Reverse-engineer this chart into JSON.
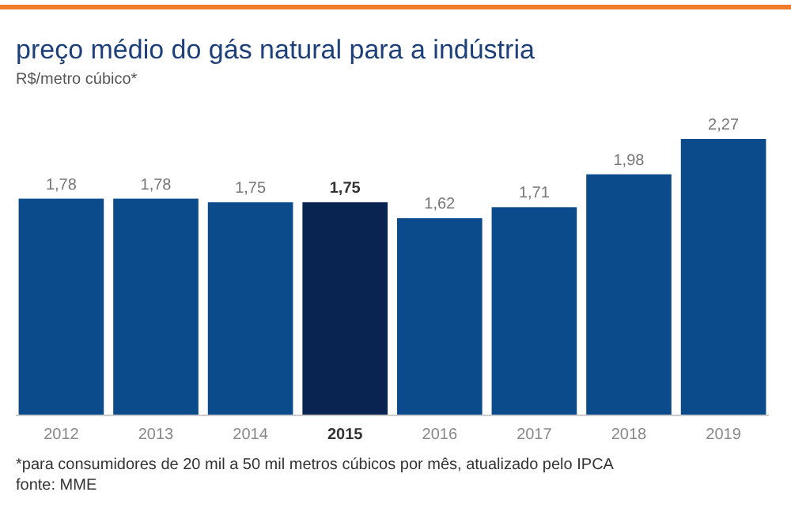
{
  "chart_data": {
    "type": "bar",
    "title": "preço médio do gás natural para a indústria",
    "subtitle": "R$/metro cúbico*",
    "categories": [
      "2012",
      "2013",
      "2014",
      "2015",
      "2016",
      "2017",
      "2018",
      "2019"
    ],
    "values": [
      1.78,
      1.78,
      1.75,
      1.75,
      1.62,
      1.71,
      1.98,
      2.27
    ],
    "value_labels": [
      "1,78",
      "1,78",
      "1,75",
      "1,75",
      "1,62",
      "1,71",
      "1,98",
      "2,27"
    ],
    "colors": [
      "#0b4a8b",
      "#0b4a8b",
      "#0b4a8b",
      "#0a2452",
      "#0b4a8b",
      "#0b4a8b",
      "#0b4a8b",
      "#0b4a8b"
    ],
    "annotations": [
      "*para consumidores de 20 mil a 50 mil metros cúbicos por mês, atualizado pelo IPCA",
      "fonte: MME"
    ]
  }
}
